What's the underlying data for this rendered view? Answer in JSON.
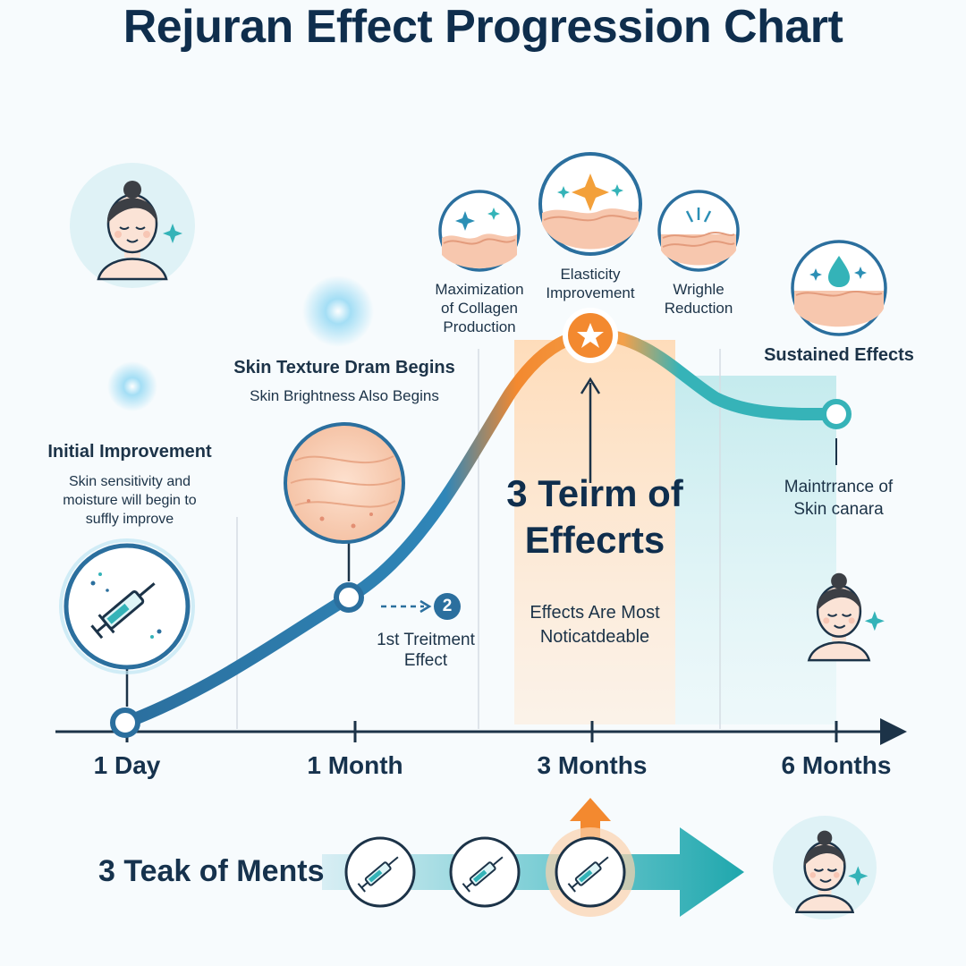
{
  "title": "Rejuran Effect Progression Chart",
  "colors": {
    "blue": "#2b6f9e",
    "teal": "#34b3b8",
    "orange": "#f3892f",
    "navy": "#0f2e4d",
    "light": "#dff2f6"
  },
  "timeline": {
    "ticks": [
      "1 Day",
      "1 Month",
      "3 Months",
      "6 Months"
    ]
  },
  "stages": {
    "initial": {
      "title": "Initial Improvement",
      "desc1": "Skin sensitivity and",
      "desc2": "moisture will begin to",
      "desc3": "suffly improve",
      "icon": "syringe-icon"
    },
    "texture": {
      "title": "Skin Texture Dram Begins",
      "desc": "Skin Brightness Also Begins",
      "icon": "skin-texture-icon"
    },
    "first": {
      "badge": "2",
      "line1": "1st Treitment",
      "line2": "Effect"
    },
    "collagen": {
      "line1": "Maximization",
      "line2": "of Collagen",
      "line3": "Production",
      "icon": "sparkle-skin-icon"
    },
    "elasticity": {
      "line1": "Elasticity",
      "line2": "Improvement",
      "icon": "star-skin-icon"
    },
    "wrinkle": {
      "line1": "Wrighle",
      "line2": "Reduction",
      "icon": "wrinkle-skin-icon"
    },
    "sustained": {
      "title": "Sustained Effects",
      "icon": "droplet-skin-icon"
    },
    "peak": {
      "line1": "3 Teirm of",
      "line2": "Effecrts",
      "sub1": "Effects Are Most",
      "sub2": "Noticatdeable"
    },
    "maintenance": {
      "line1": "Maintrrance of",
      "line2": "Skin canara"
    }
  },
  "treatments": {
    "label": "3 Teak of Ments",
    "count": 3
  },
  "chart_data": {
    "type": "line",
    "x": [
      "1 Day",
      "1 Month",
      "3 Months",
      "6 Months"
    ],
    "series": [
      {
        "values": [
          0.05,
          0.4,
          1.0,
          0.75
        ]
      }
    ]
  }
}
